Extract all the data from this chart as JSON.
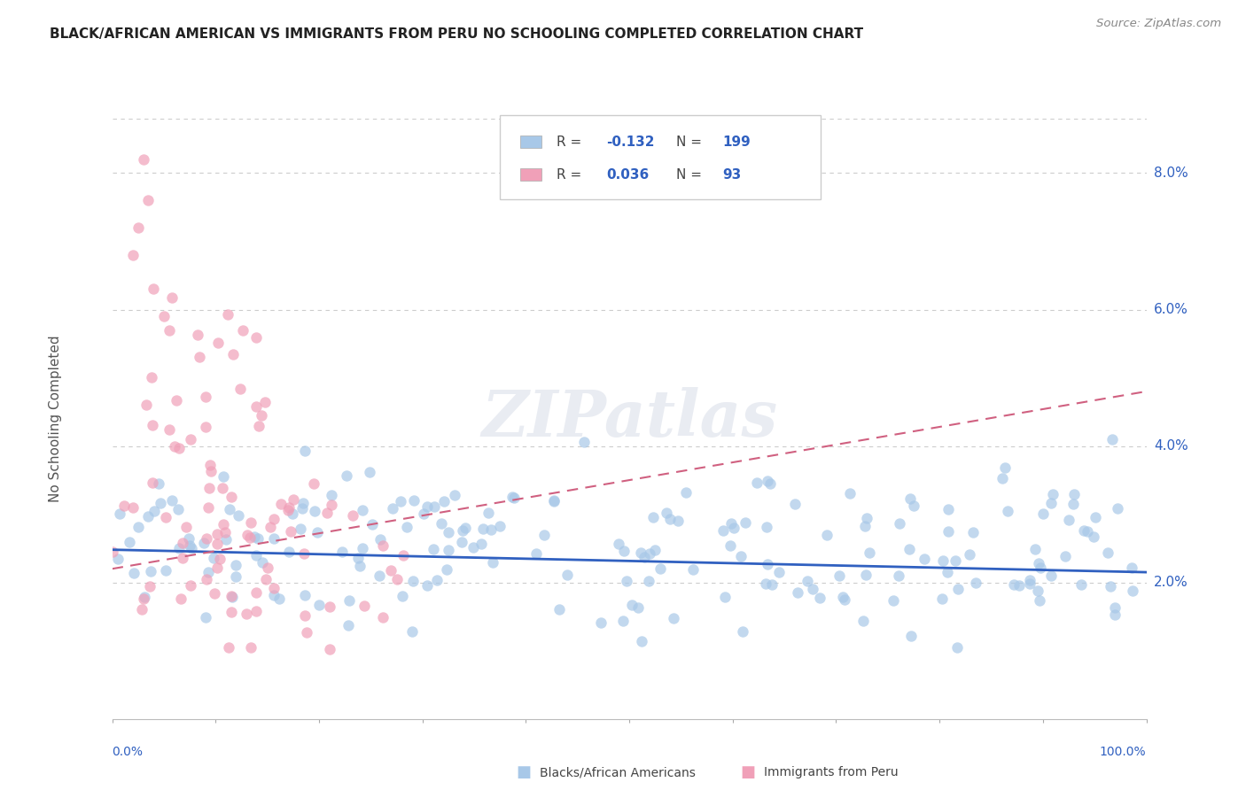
{
  "title": "BLACK/AFRICAN AMERICAN VS IMMIGRANTS FROM PERU NO SCHOOLING COMPLETED CORRELATION CHART",
  "source": "Source: ZipAtlas.com",
  "ylabel": "No Schooling Completed",
  "ytick_labels": [
    "2.0%",
    "4.0%",
    "6.0%",
    "8.0%"
  ],
  "ytick_values": [
    0.02,
    0.04,
    0.06,
    0.08
  ],
  "xlim": [
    0.0,
    1.0
  ],
  "ylim": [
    0.0,
    0.088
  ],
  "y_top_line": 0.088,
  "blue_R": "-0.132",
  "blue_N": "199",
  "pink_R": "0.036",
  "pink_N": "93",
  "blue_color": "#a8c8e8",
  "pink_color": "#f0a0b8",
  "blue_line_color": "#3060c0",
  "pink_line_color": "#d06080",
  "text_color": "#3060c0",
  "label_color": "#555555",
  "grid_color": "#cccccc",
  "watermark": "ZIPatlas",
  "legend_label_blue": "Blacks/African Americans",
  "legend_label_pink": "Immigrants from Peru",
  "blue_line_x0": 0.0,
  "blue_line_y0": 0.0248,
  "blue_line_x1": 1.0,
  "blue_line_y1": 0.0215,
  "pink_line_x0": 0.0,
  "pink_line_y0": 0.022,
  "pink_line_x1": 1.0,
  "pink_line_y1": 0.048
}
